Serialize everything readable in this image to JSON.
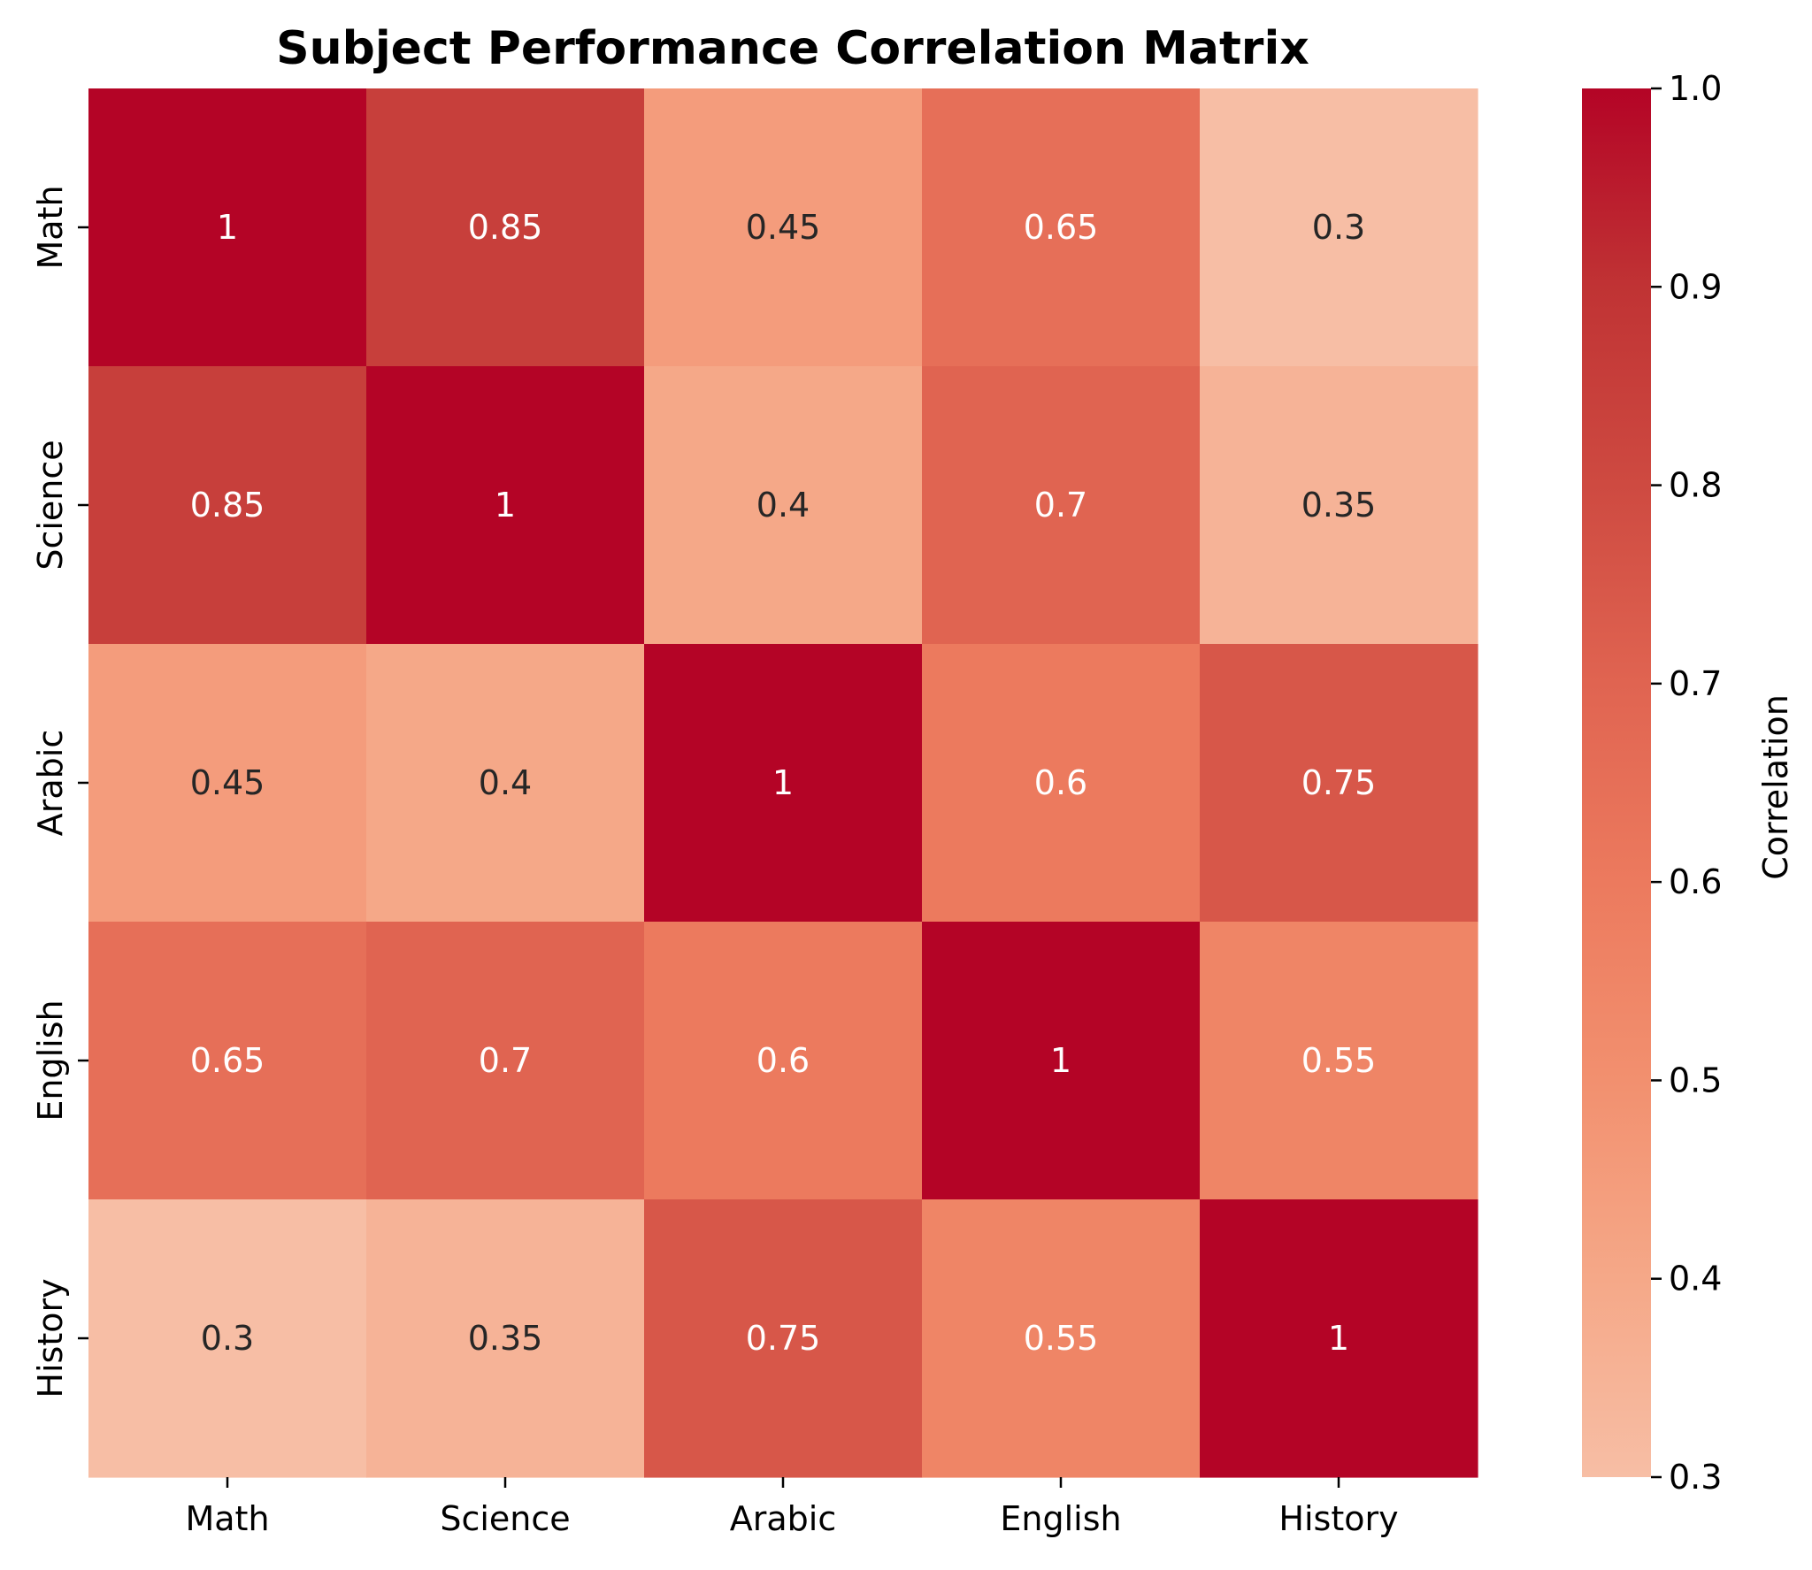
{
  "chart_data": {
    "type": "heatmap",
    "title": "Subject Performance Correlation Matrix",
    "row_labels": [
      "Math",
      "Science",
      "Arabic",
      "English",
      "History"
    ],
    "col_labels": [
      "Math",
      "Science",
      "Arabic",
      "English",
      "History"
    ],
    "matrix": [
      [
        1.0,
        0.85,
        0.45,
        0.65,
        0.3
      ],
      [
        0.85,
        1.0,
        0.4,
        0.7,
        0.35
      ],
      [
        0.45,
        0.4,
        1.0,
        0.6,
        0.75
      ],
      [
        0.65,
        0.7,
        0.6,
        1.0,
        0.55
      ],
      [
        0.3,
        0.35,
        0.75,
        0.55,
        1.0
      ]
    ],
    "cell_text": [
      [
        "1",
        "0.85",
        "0.45",
        "0.65",
        "0.3"
      ],
      [
        "0.85",
        "1",
        "0.4",
        "0.7",
        "0.35"
      ],
      [
        "0.45",
        "0.4",
        "1",
        "0.6",
        "0.75"
      ],
      [
        "0.65",
        "0.7",
        "0.6",
        "1",
        "0.55"
      ],
      [
        "0.3",
        "0.35",
        "0.75",
        "0.55",
        "1"
      ]
    ],
    "colorbar": {
      "label": "Correlation",
      "range": [
        0.3,
        1.0
      ],
      "ticks": [
        "0.3",
        "0.4",
        "0.5",
        "0.6",
        "0.7",
        "0.8",
        "0.9",
        "1.0"
      ],
      "colormap": "coolwarm (upper half)",
      "color_stops": [
        [
          0.3,
          "#f7bea5"
        ],
        [
          0.4,
          "#f5a888"
        ],
        [
          0.5,
          "#f2906f"
        ],
        [
          0.6,
          "#ec7a5e"
        ],
        [
          0.7,
          "#e06451"
        ],
        [
          0.8,
          "#ce4a41"
        ],
        [
          0.9,
          "#c03334"
        ],
        [
          1.0,
          "#b40426"
        ]
      ]
    },
    "annotation_colors": {
      "dark": "#262626",
      "light": "#ffffff"
    }
  }
}
